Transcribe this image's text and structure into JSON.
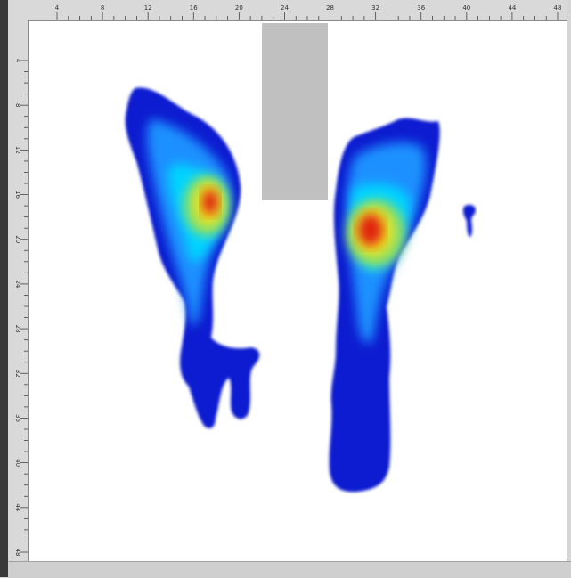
{
  "rulers": {
    "top_labels": [
      "4",
      "8",
      "12",
      "16",
      "20",
      "24",
      "28",
      "32",
      "36",
      "40",
      "44",
      "48"
    ],
    "left_labels": [
      "4",
      "8",
      "12",
      "16",
      "20",
      "24",
      "28",
      "32",
      "36",
      "40",
      "44",
      "48"
    ]
  },
  "colors": {
    "blob_low": "#0a1fd0",
    "blob_mid_low": "#1e90ff",
    "blob_mid": "#00d4ff",
    "blob_mid_high": "#8fe060",
    "blob_high": "#f0e020",
    "blob_peak": "#e0200a",
    "blocked_region": "#c0c0c0"
  }
}
